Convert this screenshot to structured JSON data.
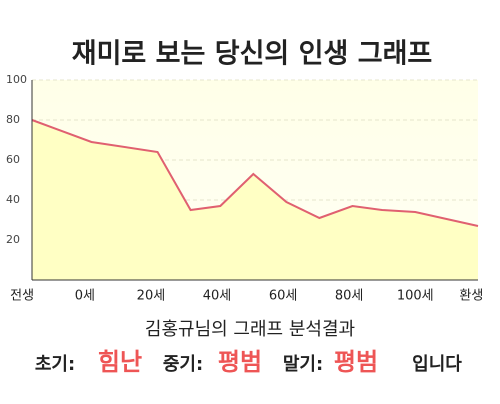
{
  "chart_data": {
    "type": "line",
    "title": "재미로 보는 당신의 인생 그래프",
    "x": [
      -16,
      2,
      22,
      32,
      41,
      51,
      61,
      71,
      81,
      90,
      100,
      119
    ],
    "series": [
      {
        "color": "#e06070",
        "values": [
          80,
          69,
          64,
          35,
          37,
          53,
          39,
          31,
          37,
          35,
          34,
          27
        ]
      }
    ],
    "fill": "#ffffc4",
    "xlim": [
      -16,
      119
    ],
    "xticks": [
      {
        "value": -19,
        "label": "전생"
      },
      {
        "value": 0,
        "label": "0세"
      },
      {
        "value": 20,
        "label": "20세"
      },
      {
        "value": 40,
        "label": "40세"
      },
      {
        "value": 60,
        "label": "60세"
      },
      {
        "value": 80,
        "label": "80세"
      },
      {
        "value": 100,
        "label": "100세"
      },
      {
        "value": 117,
        "label": "환생"
      }
    ],
    "ylim": [
      0,
      100
    ],
    "yticks": [
      20,
      40,
      60,
      80,
      100
    ],
    "grid": true
  },
  "result": {
    "heading": "김홍규님의 그래프 분석결과",
    "items": [
      {
        "label": "초기:",
        "value": "힘난"
      },
      {
        "label": "중기:",
        "value": "평범"
      },
      {
        "label": "말기:",
        "value": "평범"
      }
    ],
    "suffix": "입니다"
  }
}
